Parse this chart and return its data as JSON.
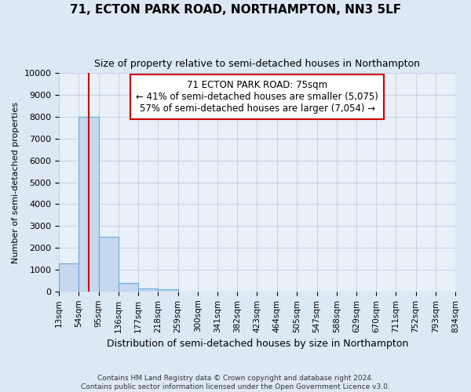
{
  "title1": "71, ECTON PARK ROAD, NORTHAMPTON, NN3 5LF",
  "title2": "Size of property relative to semi-detached houses in Northampton",
  "xlabel": "Distribution of semi-detached houses by size in Northampton",
  "ylabel": "Number of semi-detached properties",
  "footnote1": "Contains HM Land Registry data © Crown copyright and database right 2024.",
  "footnote2": "Contains public sector information licensed under the Open Government Licence v3.0.",
  "annotation_title": "71 ECTON PARK ROAD: 75sqm",
  "annotation_line1": "← 41% of semi-detached houses are smaller (5,075)",
  "annotation_line2": "57% of semi-detached houses are larger (7,054) →",
  "bin_edges": [
    13,
    54,
    95,
    136,
    177,
    218,
    259,
    300,
    341,
    382,
    423,
    464,
    505,
    547,
    588,
    629,
    670,
    711,
    752,
    793,
    834
  ],
  "bin_labels": [
    "13sqm",
    "54sqm",
    "95sqm",
    "136sqm",
    "177sqm",
    "218sqm",
    "259sqm",
    "300sqm",
    "341sqm",
    "382sqm",
    "423sqm",
    "464sqm",
    "505sqm",
    "547sqm",
    "588sqm",
    "629sqm",
    "670sqm",
    "711sqm",
    "752sqm",
    "793sqm",
    "834sqm"
  ],
  "bar_values": [
    1300,
    8000,
    2500,
    400,
    150,
    100,
    0,
    0,
    0,
    0,
    0,
    0,
    0,
    0,
    0,
    0,
    0,
    0,
    0,
    0
  ],
  "bar_color": "#c5d8f0",
  "bar_edge_color": "#6aaad4",
  "vline_color": "#cc0000",
  "vline_x": 75,
  "ylim": [
    0,
    10000
  ],
  "yticks": [
    0,
    1000,
    2000,
    3000,
    4000,
    5000,
    6000,
    7000,
    8000,
    9000,
    10000
  ],
  "grid_color": "#c8d4e8",
  "bg_color": "#dde8f5",
  "plot_bg_color": "#e8f0f8",
  "annotation_box_color": "#ffffff",
  "annotation_box_edge": "#cc0000",
  "title1_fontsize": 11,
  "title2_fontsize": 9,
  "ylabel_fontsize": 8,
  "xlabel_fontsize": 9,
  "ytick_fontsize": 8,
  "xtick_fontsize": 7.5
}
